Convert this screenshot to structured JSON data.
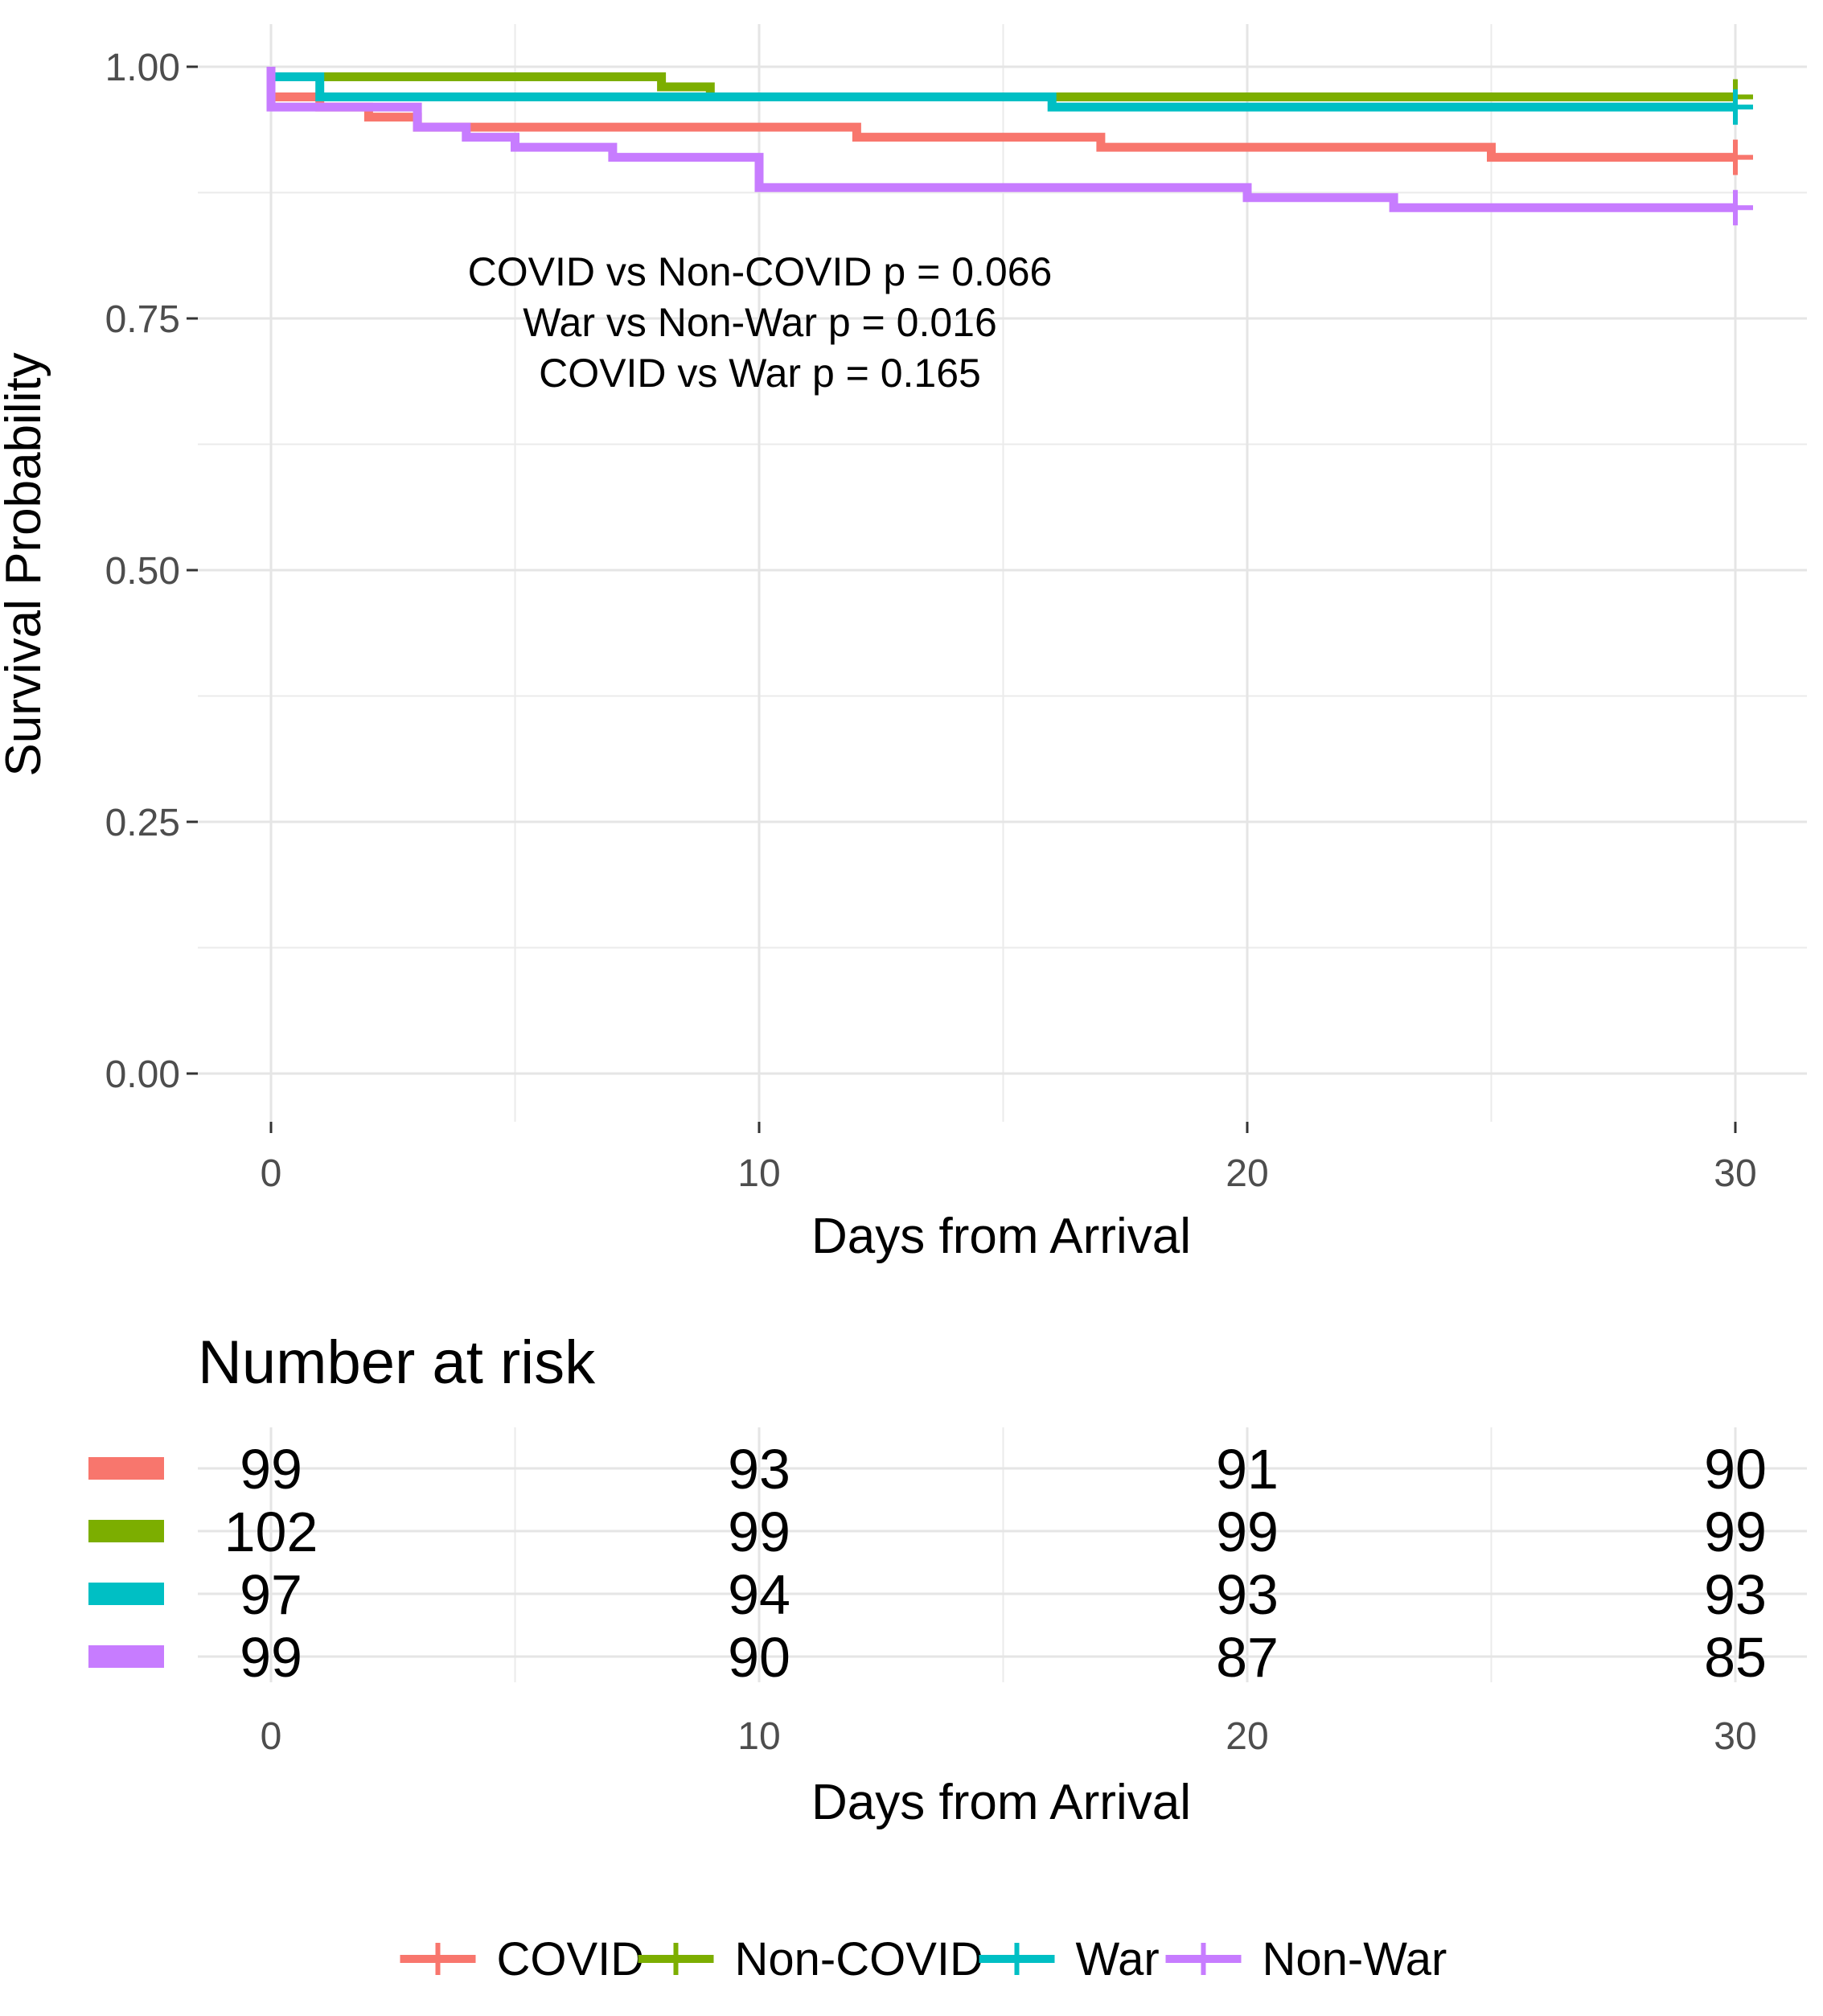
{
  "chart_data": {
    "type": "line",
    "subtype": "kaplan-meier step",
    "xlabel": "Days from Arrival",
    "ylabel": "Survival Probability",
    "xlim": [
      0,
      30
    ],
    "ylim": [
      0,
      1
    ],
    "x_ticks": [
      0,
      10,
      20,
      30
    ],
    "y_ticks": [
      0.0,
      0.25,
      0.5,
      0.75,
      1.0
    ],
    "y_tick_labels": [
      "0.00",
      "0.25",
      "0.50",
      "0.75",
      "1.00"
    ],
    "grid": true,
    "annotations": [
      "COVID vs Non-COVID p = 0.066",
      "War vs Non-War p = 0.016",
      "COVID vs War p = 0.165"
    ],
    "series": [
      {
        "name": "COVID",
        "color": "#F8766D",
        "steps": [
          [
            0,
            1.0
          ],
          [
            0,
            0.97
          ],
          [
            1,
            0.96
          ],
          [
            2,
            0.95
          ],
          [
            3,
            0.94
          ],
          [
            12,
            0.93
          ],
          [
            17,
            0.92
          ],
          [
            25,
            0.91
          ],
          [
            30,
            0.91
          ]
        ]
      },
      {
        "name": "Non-COVID",
        "color": "#7CAE00",
        "steps": [
          [
            0,
            1.0
          ],
          [
            0,
            0.99
          ],
          [
            8,
            0.98
          ],
          [
            9,
            0.97
          ],
          [
            30,
            0.97
          ]
        ]
      },
      {
        "name": "War",
        "color": "#00BFC4",
        "steps": [
          [
            0,
            1.0
          ],
          [
            0,
            0.99
          ],
          [
            1,
            0.97
          ],
          [
            16,
            0.96
          ],
          [
            30,
            0.96
          ]
        ]
      },
      {
        "name": "Non-War",
        "color": "#C77CFF",
        "steps": [
          [
            0,
            1.0
          ],
          [
            0,
            0.96
          ],
          [
            3,
            0.94
          ],
          [
            4,
            0.93
          ],
          [
            5,
            0.92
          ],
          [
            7,
            0.91
          ],
          [
            10,
            0.88
          ],
          [
            20,
            0.87
          ],
          [
            23,
            0.86
          ],
          [
            30,
            0.86
          ]
        ]
      }
    ],
    "risk_table": {
      "title": "Number at risk",
      "xlabel": "Days from Arrival",
      "times": [
        0,
        10,
        20,
        30
      ],
      "rows": [
        {
          "name": "COVID",
          "counts": [
            "99",
            "93",
            "91",
            "90"
          ]
        },
        {
          "name": "Non-COVID",
          "counts": [
            "102",
            "99",
            "99",
            "99"
          ]
        },
        {
          "name": "War",
          "counts": [
            "97",
            "94",
            "93",
            "93"
          ]
        },
        {
          "name": "Non-War",
          "counts": [
            "99",
            "90",
            "87",
            "85"
          ]
        }
      ]
    },
    "legend": {
      "position": "bottom",
      "entries": [
        "COVID",
        "Non-COVID",
        "War",
        "Non-War"
      ]
    }
  }
}
